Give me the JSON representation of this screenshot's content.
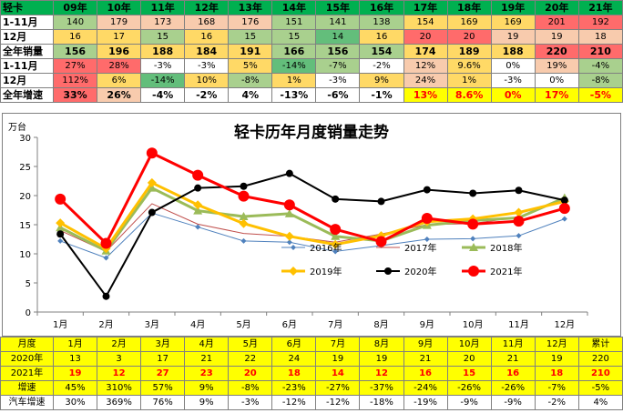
{
  "top_table": {
    "corner": "轻卡",
    "years": [
      "09年",
      "10年",
      "11年",
      "12年",
      "13年",
      "14年",
      "15年",
      "16年",
      "17年",
      "18年",
      "19年",
      "20年",
      "21年"
    ],
    "rows": [
      {
        "label": "1-11月",
        "style": "norm",
        "cells": [
          "140",
          "179",
          "173",
          "168",
          "176",
          "151",
          "141",
          "138",
          "154",
          "169",
          "169",
          "201",
          "192"
        ],
        "colors": [
          "#a9d08e",
          "#f8cbad",
          "#f8cbad",
          "#f8cbad",
          "#f8cbad",
          "#a9d08e",
          "#a9d08e",
          "#a9d08e",
          "#ffd966",
          "#ffd966",
          "#ffd966",
          "#ff6b6b",
          "#ff6b6b"
        ]
      },
      {
        "label": "12月",
        "style": "norm",
        "cells": [
          "16",
          "17",
          "15",
          "16",
          "15",
          "15",
          "14",
          "16",
          "20",
          "20",
          "19",
          "19",
          "18"
        ],
        "colors": [
          "#ffd966",
          "#ffd966",
          "#a9d08e",
          "#ffd966",
          "#a9d08e",
          "#a9d08e",
          "#63be7b",
          "#ffd966",
          "#ff6b6b",
          "#ff6b6b",
          "#f8cbad",
          "#f8cbad",
          "#f8cbad"
        ]
      },
      {
        "label": "全年销量",
        "style": "bold",
        "cells": [
          "156",
          "196",
          "188",
          "184",
          "191",
          "166",
          "156",
          "154",
          "174",
          "189",
          "188",
          "220",
          "210"
        ],
        "colors": [
          "#a9d08e",
          "#ffd966",
          "#ffd966",
          "#ffd966",
          "#ffd966",
          "#a9d08e",
          "#a9d08e",
          "#a9d08e",
          "#ffd966",
          "#ffd966",
          "#ffd966",
          "#ff6b6b",
          "#ff6b6b"
        ]
      },
      {
        "label": "1-11月",
        "style": "norm",
        "cells": [
          "27%",
          "28%",
          "-3%",
          "-3%",
          "5%",
          "-14%",
          "-7%",
          "-2%",
          "12%",
          "9.6%",
          "0%",
          "19%",
          "-4%"
        ],
        "colors": [
          "#ff6b6b",
          "#ff6b6b",
          "#ffffff",
          "#ffffff",
          "#ffd966",
          "#63be7b",
          "#a9d08e",
          "#ffffff",
          "#f8cbad",
          "#ffd966",
          "#ffffff",
          "#f8cbad",
          "#a9d08e"
        ]
      },
      {
        "label": "12月",
        "style": "norm",
        "cells": [
          "112%",
          "6%",
          "-14%",
          "10%",
          "-8%",
          "1%",
          "-3%",
          "9%",
          "24%",
          "1%",
          "-3%",
          "0%",
          "-8%"
        ],
        "colors": [
          "#ff6b6b",
          "#ffd966",
          "#63be7b",
          "#ffd966",
          "#a9d08e",
          "#ffd966",
          "#ffffff",
          "#ffd966",
          "#f8cbad",
          "#ffd966",
          "#ffffff",
          "#ffffff",
          "#a9d08e"
        ]
      },
      {
        "label": "全年增速",
        "style": "bold",
        "cells": [
          "33%",
          "26%",
          "-4%",
          "-2%",
          "4%",
          "-13%",
          "-6%",
          "-1%",
          "13%",
          "8.6%",
          "0%",
          "17%",
          "-5%"
        ],
        "colors": [
          "#ff6b6b",
          "#f8cbad",
          "#ffffff",
          "#ffffff",
          "#ffffff",
          "#ffffff",
          "#ffffff",
          "#ffffff",
          "#ffff00",
          "#ffff00",
          "#ffff00",
          "#ffff00",
          "#ffff00"
        ],
        "text_colors": [
          "#000",
          "#000",
          "#000",
          "#000",
          "#000",
          "#000",
          "#000",
          "#000",
          "#ff0000",
          "#ff0000",
          "#ff0000",
          "#ff0000",
          "#ff0000"
        ]
      }
    ]
  },
  "chart_data": {
    "type": "line",
    "title": "轻卡历年月度销量走势",
    "ylabel": "万台",
    "xlabel": "",
    "ylim": [
      0,
      30
    ],
    "yticks": [
      "0",
      "5",
      "10",
      "15",
      "20",
      "25",
      "30"
    ],
    "categories": [
      "1月",
      "2月",
      "3月",
      "4月",
      "5月",
      "6月",
      "7月",
      "8月",
      "9月",
      "10月",
      "11月",
      "12月"
    ],
    "grid": false,
    "legend_position": "bottom-right",
    "series": [
      {
        "name": "2016年",
        "color": "#4f81bd",
        "marker": "diamond",
        "width": 1,
        "values": [
          12.2,
          9.3,
          17.0,
          14.6,
          12.2,
          12.0,
          10.4,
          11.4,
          12.5,
          12.6,
          13.1,
          16.0
        ]
      },
      {
        "name": "2017年",
        "color": "#c0504d",
        "marker": "none",
        "width": 1,
        "values": [
          14.0,
          10.4,
          18.6,
          15.1,
          13.5,
          13.0,
          12.0,
          13.4,
          15.0,
          15.2,
          16.3,
          19.5
        ]
      },
      {
        "name": "2018年",
        "color": "#9bbb59",
        "marker": "triangle",
        "width": 3,
        "values": [
          14.5,
          10.5,
          21.3,
          17.4,
          16.4,
          16.9,
          13.0,
          12.2,
          14.9,
          15.7,
          16.2,
          19.6
        ]
      },
      {
        "name": "2019年",
        "color": "#ffc000",
        "marker": "diamond",
        "width": 3,
        "values": [
          15.3,
          10.9,
          22.2,
          18.4,
          15.2,
          13.0,
          11.6,
          13.1,
          15.5,
          16.0,
          17.1,
          19.0
        ]
      },
      {
        "name": "2020年",
        "color": "#000000",
        "marker": "circle",
        "width": 2,
        "values": [
          13.4,
          2.7,
          17.1,
          21.3,
          21.6,
          23.8,
          19.4,
          19.0,
          21.0,
          20.4,
          20.9,
          19.2
        ]
      },
      {
        "name": "2021年",
        "color": "#ff0000",
        "marker": "circle",
        "width": 3,
        "values": [
          19.4,
          11.8,
          27.3,
          23.5,
          19.9,
          18.4,
          14.2,
          12.1,
          16.1,
          15.1,
          15.6,
          17.8
        ]
      }
    ]
  },
  "bottom_table": {
    "header": [
      "月度",
      "1月",
      "2月",
      "3月",
      "4月",
      "5月",
      "6月",
      "7月",
      "8月",
      "9月",
      "10月",
      "11月",
      "12月",
      "累计"
    ],
    "rows": [
      {
        "label": "2020年",
        "cls": "y",
        "cells": [
          "13",
          "3",
          "17",
          "21",
          "22",
          "24",
          "19",
          "19",
          "21",
          "20",
          "21",
          "19",
          "220"
        ]
      },
      {
        "label": "2021年",
        "cls": "y red",
        "cells": [
          "19",
          "12",
          "27",
          "23",
          "20",
          "18",
          "14",
          "12",
          "16",
          "15",
          "16",
          "18",
          "210"
        ]
      },
      {
        "label": "增速",
        "cls": "y",
        "cells": [
          "45%",
          "310%",
          "57%",
          "9%",
          "-8%",
          "-23%",
          "-27%",
          "-37%",
          "-24%",
          "-26%",
          "-26%",
          "-7%",
          "-5%"
        ]
      },
      {
        "label": "汽车增速",
        "cls": "w",
        "cells": [
          "30%",
          "369%",
          "76%",
          "9%",
          "-3%",
          "-12%",
          "-12%",
          "-18%",
          "-19%",
          "-9%",
          "-9%",
          "-2%",
          "4%"
        ]
      }
    ]
  }
}
